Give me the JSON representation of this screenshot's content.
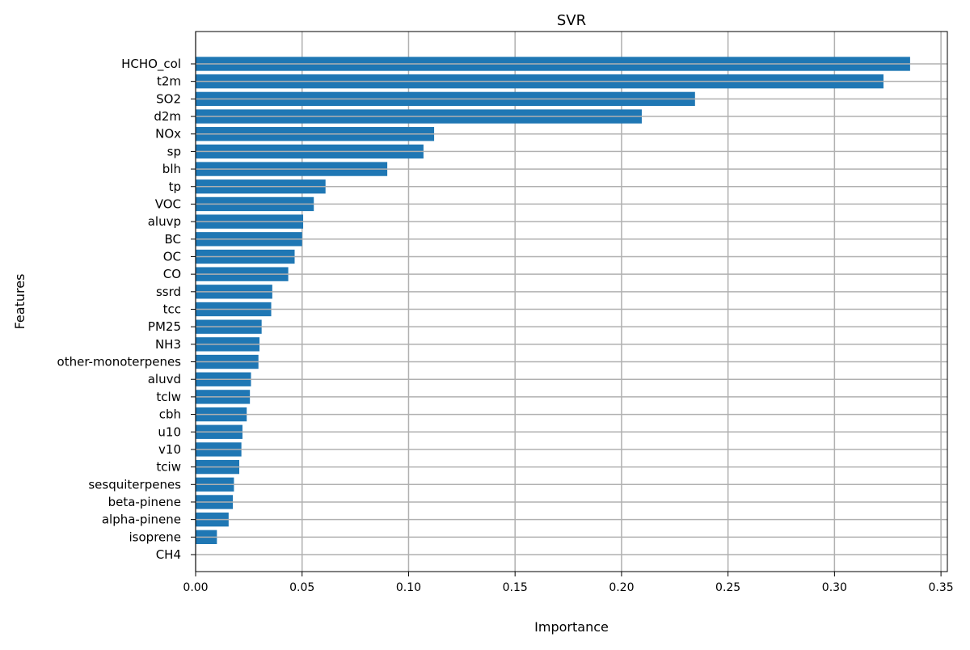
{
  "chart_data": {
    "type": "bar",
    "orientation": "horizontal",
    "title": "SVR",
    "xlabel": "Importance",
    "ylabel": "Features",
    "xlim": [
      0,
      0.353
    ],
    "xticks": [
      0.0,
      0.05,
      0.1,
      0.15,
      0.2,
      0.25,
      0.3,
      0.35
    ],
    "xtick_labels": [
      "0.00",
      "0.05",
      "0.10",
      "0.15",
      "0.20",
      "0.25",
      "0.30",
      "0.35"
    ],
    "grid": true,
    "bar_color": "#1f77b4",
    "grid_color": "#b0b0b0",
    "categories": [
      "HCHO_col",
      "t2m",
      "SO2",
      "d2m",
      "NOx",
      "sp",
      "blh",
      "tp",
      "VOC",
      "aluvp",
      "BC",
      "OC",
      "CO",
      "ssrd",
      "tcc",
      "PM25",
      "NH3",
      "other-monoterpenes",
      "aluvd",
      "tclw",
      "cbh",
      "u10",
      "v10",
      "tciw",
      "sesquiterpenes",
      "beta-pinene",
      "alpha-pinene",
      "isoprene",
      "CH4"
    ],
    "values": [
      0.3355,
      0.323,
      0.2345,
      0.2095,
      0.112,
      0.107,
      0.09,
      0.061,
      0.0555,
      0.0505,
      0.05,
      0.0465,
      0.0435,
      0.036,
      0.0355,
      0.031,
      0.03,
      0.0295,
      0.026,
      0.0255,
      0.024,
      0.022,
      0.0215,
      0.0205,
      0.018,
      0.0175,
      0.0155,
      0.01,
      0.0
    ]
  }
}
